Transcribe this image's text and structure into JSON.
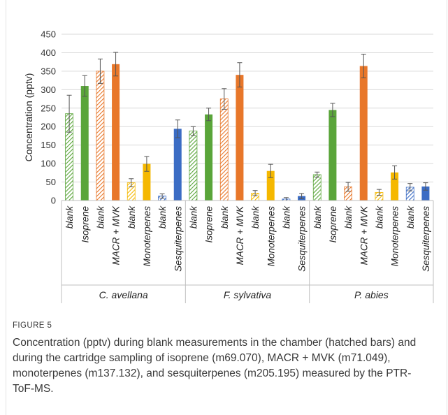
{
  "figure": {
    "label": "FIGURE 5",
    "caption": "Concentration (pptv) during blank measurements in the chamber (hatched bars) and during the cartridge sampling of isoprene (m69.070), MACR + MVK (m71.049), monoterpenes (m137.132), and sesquiterpenes (m205.195) measured by the PTR-ToF-MS."
  },
  "chart_data": {
    "type": "bar",
    "ylabel": "Concentration (pptv)",
    "ylim": [
      0,
      450
    ],
    "yticks": [
      0,
      50,
      100,
      150,
      200,
      250,
      300,
      350,
      400,
      450
    ],
    "grid": true,
    "legend": "none",
    "colors": {
      "Isoprene": "#5aa53a",
      "MACR + MVK": "#e8772a",
      "Monoterpenes": "#f5b800",
      "Sesquiterpenes": "#3b6cc4"
    },
    "groups": [
      {
        "name": "C. avellana",
        "bars": [
          {
            "label": "blank",
            "compound": "Isoprene",
            "hatched": true,
            "value": 235,
            "error": 50
          },
          {
            "label": "Isoprene",
            "compound": "Isoprene",
            "hatched": false,
            "value": 310,
            "error": 28
          },
          {
            "label": "blank",
            "compound": "MACR + MVK",
            "hatched": true,
            "value": 350,
            "error": 33
          },
          {
            "label": "MACR + MVK",
            "compound": "MACR + MVK",
            "hatched": false,
            "value": 369,
            "error": 32
          },
          {
            "label": "blank",
            "compound": "Monoterpenes",
            "hatched": true,
            "value": 48,
            "error": 11
          },
          {
            "label": "Monoterpenes",
            "compound": "Monoterpenes",
            "hatched": false,
            "value": 99,
            "error": 20
          },
          {
            "label": "blank",
            "compound": "Sesquiterpenes",
            "hatched": true,
            "value": 12,
            "error": 6
          },
          {
            "label": "Sesquiterpenes",
            "compound": "Sesquiterpenes",
            "hatched": false,
            "value": 194,
            "error": 24
          }
        ]
      },
      {
        "name": "F. sylvativa",
        "bars": [
          {
            "label": "blank",
            "compound": "Isoprene",
            "hatched": true,
            "value": 188,
            "error": 12
          },
          {
            "label": "Isoprene",
            "compound": "Isoprene",
            "hatched": false,
            "value": 233,
            "error": 17
          },
          {
            "label": "blank",
            "compound": "MACR + MVK",
            "hatched": true,
            "value": 275,
            "error": 28
          },
          {
            "label": "MACR + MVK",
            "compound": "MACR + MVK",
            "hatched": false,
            "value": 340,
            "error": 33
          },
          {
            "label": "blank",
            "compound": "Monoterpenes",
            "hatched": true,
            "value": 20,
            "error": 7
          },
          {
            "label": "Monoterpenes",
            "compound": "Monoterpenes",
            "hatched": false,
            "value": 80,
            "error": 18
          },
          {
            "label": "blank",
            "compound": "Sesquiterpenes",
            "hatched": true,
            "value": 4,
            "error": 4
          },
          {
            "label": "Sesquiterpenes",
            "compound": "Sesquiterpenes",
            "hatched": false,
            "value": 12,
            "error": 7
          }
        ]
      },
      {
        "name": "P. abies",
        "bars": [
          {
            "label": "blank",
            "compound": "Isoprene",
            "hatched": true,
            "value": 70,
            "error": 7
          },
          {
            "label": "Isoprene",
            "compound": "Isoprene",
            "hatched": false,
            "value": 245,
            "error": 18
          },
          {
            "label": "blank",
            "compound": "MACR + MVK",
            "hatched": true,
            "value": 37,
            "error": 12
          },
          {
            "label": "MACR + MVK",
            "compound": "MACR + MVK",
            "hatched": false,
            "value": 364,
            "error": 32
          },
          {
            "label": "blank",
            "compound": "Monoterpenes",
            "hatched": true,
            "value": 22,
            "error": 8
          },
          {
            "label": "Monoterpenes",
            "compound": "Monoterpenes",
            "hatched": false,
            "value": 76,
            "error": 18
          },
          {
            "label": "blank",
            "compound": "Sesquiterpenes",
            "hatched": true,
            "value": 36,
            "error": 10
          },
          {
            "label": "Sesquiterpenes",
            "compound": "Sesquiterpenes",
            "hatched": false,
            "value": 38,
            "error": 10
          }
        ]
      }
    ]
  }
}
